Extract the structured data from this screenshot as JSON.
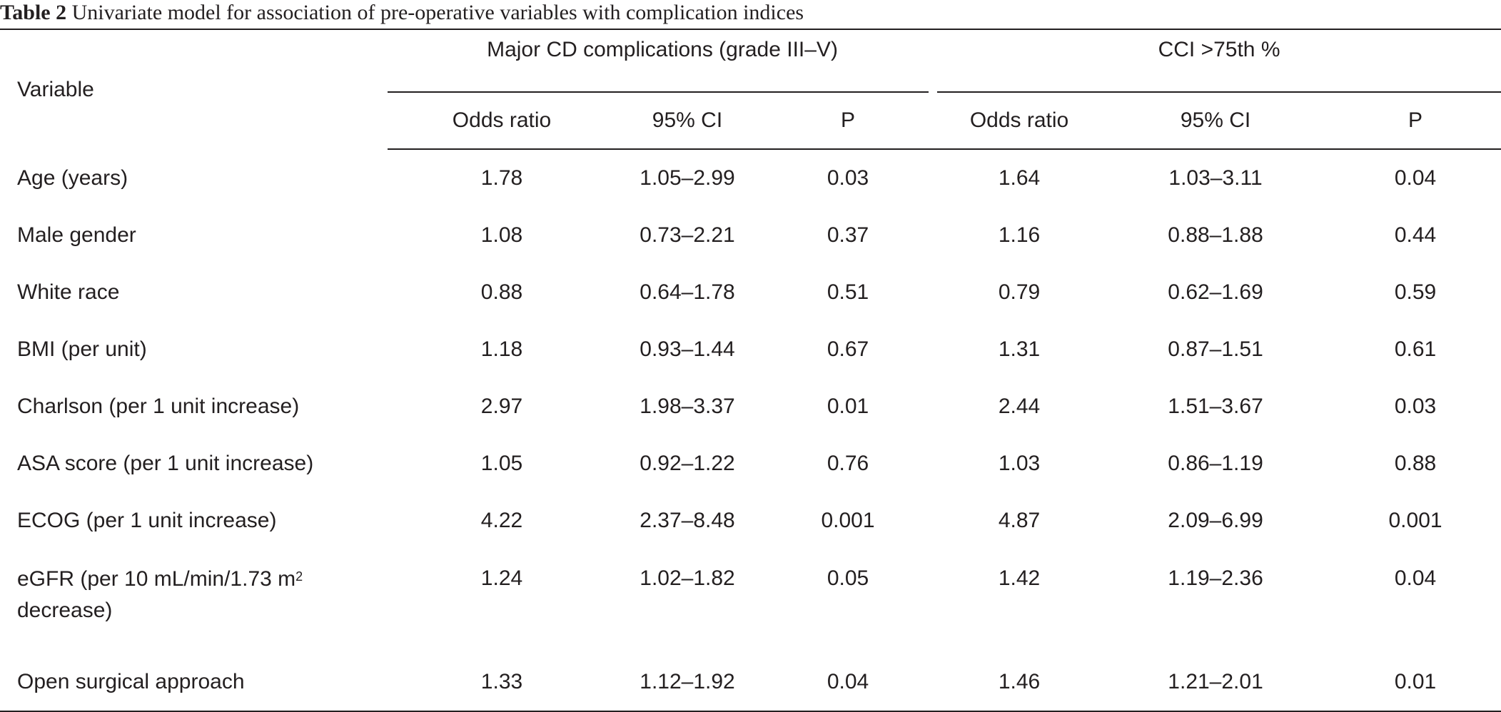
{
  "caption": {
    "label": "Table 2",
    "text": "Univariate model for association of pre-operative variables with complication indices"
  },
  "header": {
    "variable": "Variable",
    "group_a": "Major CD complications (grade III–V)",
    "group_b": "CCI >75th %",
    "sub": [
      "Odds ratio",
      "95% CI",
      "P",
      "Odds ratio",
      "95% CI",
      "P"
    ]
  },
  "rows": [
    {
      "variable": "Age (years)",
      "cells": [
        "1.78",
        "1.05–2.99",
        "0.03",
        "1.64",
        "1.03–3.11",
        "0.04"
      ]
    },
    {
      "variable": "Male gender",
      "cells": [
        "1.08",
        "0.73–2.21",
        "0.37",
        "1.16",
        "0.88–1.88",
        "0.44"
      ]
    },
    {
      "variable": "White race",
      "cells": [
        "0.88",
        "0.64–1.78",
        "0.51",
        "0.79",
        "0.62–1.69",
        "0.59"
      ]
    },
    {
      "variable": "BMI (per unit)",
      "cells": [
        "1.18",
        "0.93–1.44",
        "0.67",
        "1.31",
        "0.87–1.51",
        "0.61"
      ]
    },
    {
      "variable": "Charlson (per 1 unit increase)",
      "cells": [
        "2.97",
        "1.98–3.37",
        "0.01",
        "2.44",
        "1.51–3.67",
        "0.03"
      ]
    },
    {
      "variable": "ASA score (per 1 unit increase)",
      "cells": [
        "1.05",
        "0.92–1.22",
        "0.76",
        "1.03",
        "0.86–1.19",
        "0.88"
      ]
    },
    {
      "variable": "ECOG (per 1 unit increase)",
      "cells": [
        "4.22",
        "2.37–8.48",
        "0.001",
        "4.87",
        "2.09–6.99",
        "0.001"
      ]
    },
    {
      "variable_line1": "eGFR (per 10 mL/min/1.73 m",
      "variable_sup": "2",
      "variable_line2": "decrease)",
      "cells": [
        "1.24",
        "1.02–1.82",
        "0.05",
        "1.42",
        "1.19–2.36",
        "0.04"
      ]
    },
    {
      "variable": "Open surgical approach",
      "cells": [
        "1.33",
        "1.12–1.92",
        "0.04",
        "1.46",
        "1.21–2.01",
        "0.01"
      ]
    }
  ]
}
